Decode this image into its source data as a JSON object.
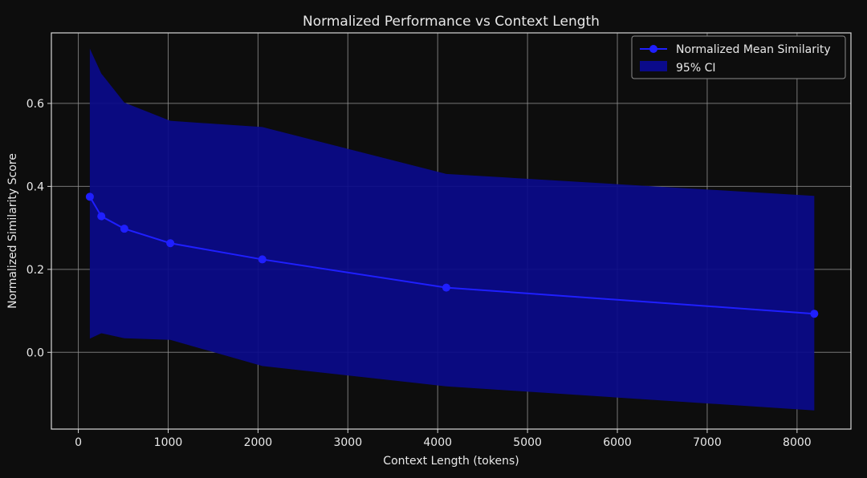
{
  "chart_data": {
    "type": "line",
    "title": "Normalized Performance vs Context Length",
    "xlabel": "Context Length (tokens)",
    "ylabel": "Normalized Similarity Score",
    "xlim": [
      -300,
      8600
    ],
    "ylim": [
      -0.185,
      0.77
    ],
    "xticks": [
      0,
      1000,
      2000,
      3000,
      4000,
      5000,
      6000,
      7000,
      8000
    ],
    "xtick_labels": [
      "0",
      "1000",
      "2000",
      "3000",
      "4000",
      "5000",
      "6000",
      "7000",
      "8000"
    ],
    "yticks": [
      0.0,
      0.2,
      0.4,
      0.6
    ],
    "ytick_labels": [
      "0.0",
      "0.2",
      "0.4",
      "0.6"
    ],
    "grid": true,
    "legend_position": "top-right",
    "series": [
      {
        "name": "Normalized Mean Similarity",
        "color": "#1f1fff",
        "marker": "circle",
        "x": [
          128,
          256,
          512,
          1024,
          2048,
          4096,
          8192
        ],
        "y": [
          0.375,
          0.328,
          0.298,
          0.263,
          0.224,
          0.156,
          0.093
        ]
      }
    ],
    "confidence_band": {
      "name": "95% CI",
      "color": "#0a0a8a",
      "x": [
        128,
        256,
        512,
        1024,
        2048,
        4096,
        8192
      ],
      "upper": [
        0.732,
        0.672,
        0.602,
        0.558,
        0.543,
        0.43,
        0.377
      ],
      "lower": [
        0.033,
        0.046,
        0.034,
        0.03,
        -0.033,
        -0.082,
        -0.14
      ]
    }
  }
}
